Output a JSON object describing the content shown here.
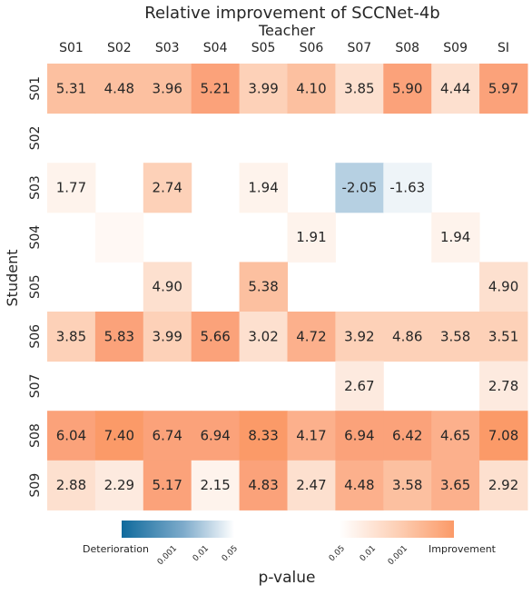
{
  "chart_data": {
    "type": "heatmap",
    "title": "Relative improvement of SCCNet-4b",
    "xlabel": "Teacher",
    "ylabel": "Student",
    "x_categories": [
      "S01",
      "S02",
      "S03",
      "S04",
      "S05",
      "S06",
      "S07",
      "S08",
      "S09",
      "SI"
    ],
    "y_categories": [
      "S01",
      "S02",
      "S03",
      "S04",
      "S05",
      "S06",
      "S07",
      "S08",
      "S09"
    ],
    "x_axis_position": "top",
    "colorbar": {
      "label": "p-value",
      "deterioration_label": "Deterioration",
      "improvement_label": "Improvement",
      "deterioration_ticks": [
        "0.001",
        "0.01",
        "0.05"
      ],
      "improvement_ticks": [
        "0.05",
        "0.01",
        "0.001"
      ],
      "deterioration_color": "#2a6fa0",
      "improvement_color": "#fb9a68"
    },
    "cells": [
      {
        "row": "S01",
        "col": "S01",
        "value": "5.31",
        "color": "#fcc0a0"
      },
      {
        "row": "S01",
        "col": "S02",
        "value": "4.48",
        "color": "#fcc0a0"
      },
      {
        "row": "S01",
        "col": "S03",
        "value": "3.96",
        "color": "#fcc0a0"
      },
      {
        "row": "S01",
        "col": "S04",
        "value": "5.21",
        "color": "#fba27a"
      },
      {
        "row": "S01",
        "col": "S05",
        "value": "3.99",
        "color": "#fdd1b8"
      },
      {
        "row": "S01",
        "col": "S06",
        "value": "4.10",
        "color": "#fcc0a0"
      },
      {
        "row": "S01",
        "col": "S07",
        "value": "3.85",
        "color": "#fde0cf"
      },
      {
        "row": "S01",
        "col": "S08",
        "value": "5.90",
        "color": "#fba27a"
      },
      {
        "row": "S01",
        "col": "S09",
        "value": "4.44",
        "color": "#fde0cf"
      },
      {
        "row": "S01",
        "col": "SI",
        "value": "5.97",
        "color": "#fba27a"
      },
      {
        "row": "S03",
        "col": "S01",
        "value": "1.77",
        "color": "#fef3ec"
      },
      {
        "row": "S03",
        "col": "S03",
        "value": "2.74",
        "color": "#fdd1b8"
      },
      {
        "row": "S03",
        "col": "S05",
        "value": "1.94",
        "color": "#fef3ec"
      },
      {
        "row": "S03",
        "col": "S07",
        "value": "-2.05",
        "color": "#b6d0e2"
      },
      {
        "row": "S03",
        "col": "S08",
        "value": "-1.63",
        "color": "#eef4f8"
      },
      {
        "row": "S04",
        "col": "S02",
        "value": "",
        "color": "#fff8f4"
      },
      {
        "row": "S04",
        "col": "S06",
        "value": "1.91",
        "color": "#fef3ec"
      },
      {
        "row": "S04",
        "col": "S09",
        "value": "1.94",
        "color": "#fef3ec"
      },
      {
        "row": "S05",
        "col": "S03",
        "value": "4.90",
        "color": "#fde0cf"
      },
      {
        "row": "S05",
        "col": "S05",
        "value": "5.38",
        "color": "#fcc0a0"
      },
      {
        "row": "S05",
        "col": "SI",
        "value": "4.90",
        "color": "#fde0cf"
      },
      {
        "row": "S06",
        "col": "S01",
        "value": "3.85",
        "color": "#fdd1b8"
      },
      {
        "row": "S06",
        "col": "S02",
        "value": "5.83",
        "color": "#fba27a"
      },
      {
        "row": "S06",
        "col": "S03",
        "value": "3.99",
        "color": "#fdd1b8"
      },
      {
        "row": "S06",
        "col": "S04",
        "value": "5.66",
        "color": "#fba27a"
      },
      {
        "row": "S06",
        "col": "S05",
        "value": "3.02",
        "color": "#fde0cf"
      },
      {
        "row": "S06",
        "col": "S06",
        "value": "4.72",
        "color": "#fcb08c"
      },
      {
        "row": "S06",
        "col": "S07",
        "value": "3.92",
        "color": "#fdd1b8"
      },
      {
        "row": "S06",
        "col": "S08",
        "value": "4.86",
        "color": "#fdd1b8"
      },
      {
        "row": "S06",
        "col": "S09",
        "value": "3.58",
        "color": "#fdd1b8"
      },
      {
        "row": "S06",
        "col": "SI",
        "value": "3.51",
        "color": "#fdd1b8"
      },
      {
        "row": "S07",
        "col": "S07",
        "value": "2.67",
        "color": "#fdeadf"
      },
      {
        "row": "S07",
        "col": "SI",
        "value": "2.78",
        "color": "#fdeadf"
      },
      {
        "row": "S08",
        "col": "S01",
        "value": "6.04",
        "color": "#fba27a"
      },
      {
        "row": "S08",
        "col": "S02",
        "value": "7.40",
        "color": "#fb9a68"
      },
      {
        "row": "S08",
        "col": "S03",
        "value": "6.74",
        "color": "#fba27a"
      },
      {
        "row": "S08",
        "col": "S04",
        "value": "6.94",
        "color": "#fba27a"
      },
      {
        "row": "S08",
        "col": "S05",
        "value": "8.33",
        "color": "#fb9a68"
      },
      {
        "row": "S08",
        "col": "S06",
        "value": "4.17",
        "color": "#fcb08c"
      },
      {
        "row": "S08",
        "col": "S07",
        "value": "6.94",
        "color": "#fba27a"
      },
      {
        "row": "S08",
        "col": "S08",
        "value": "6.42",
        "color": "#fba27a"
      },
      {
        "row": "S08",
        "col": "S09",
        "value": "4.65",
        "color": "#fcb08c"
      },
      {
        "row": "S08",
        "col": "SI",
        "value": "7.08",
        "color": "#fb9a68"
      },
      {
        "row": "S09",
        "col": "S01",
        "value": "2.88",
        "color": "#fde0cf"
      },
      {
        "row": "S09",
        "col": "S02",
        "value": "2.29",
        "color": "#fdeadf"
      },
      {
        "row": "S09",
        "col": "S03",
        "value": "5.17",
        "color": "#fba27a"
      },
      {
        "row": "S09",
        "col": "S04",
        "value": "2.15",
        "color": "#fef3ec"
      },
      {
        "row": "S09",
        "col": "S05",
        "value": "4.83",
        "color": "#fba27a"
      },
      {
        "row": "S09",
        "col": "S06",
        "value": "2.47",
        "color": "#fde0cf"
      },
      {
        "row": "S09",
        "col": "S07",
        "value": "4.48",
        "color": "#fcb08c"
      },
      {
        "row": "S09",
        "col": "S08",
        "value": "3.58",
        "color": "#fcc0a0"
      },
      {
        "row": "S09",
        "col": "S09",
        "value": "3.65",
        "color": "#fcb08c"
      },
      {
        "row": "S09",
        "col": "SI",
        "value": "2.92",
        "color": "#fde0cf"
      }
    ]
  }
}
